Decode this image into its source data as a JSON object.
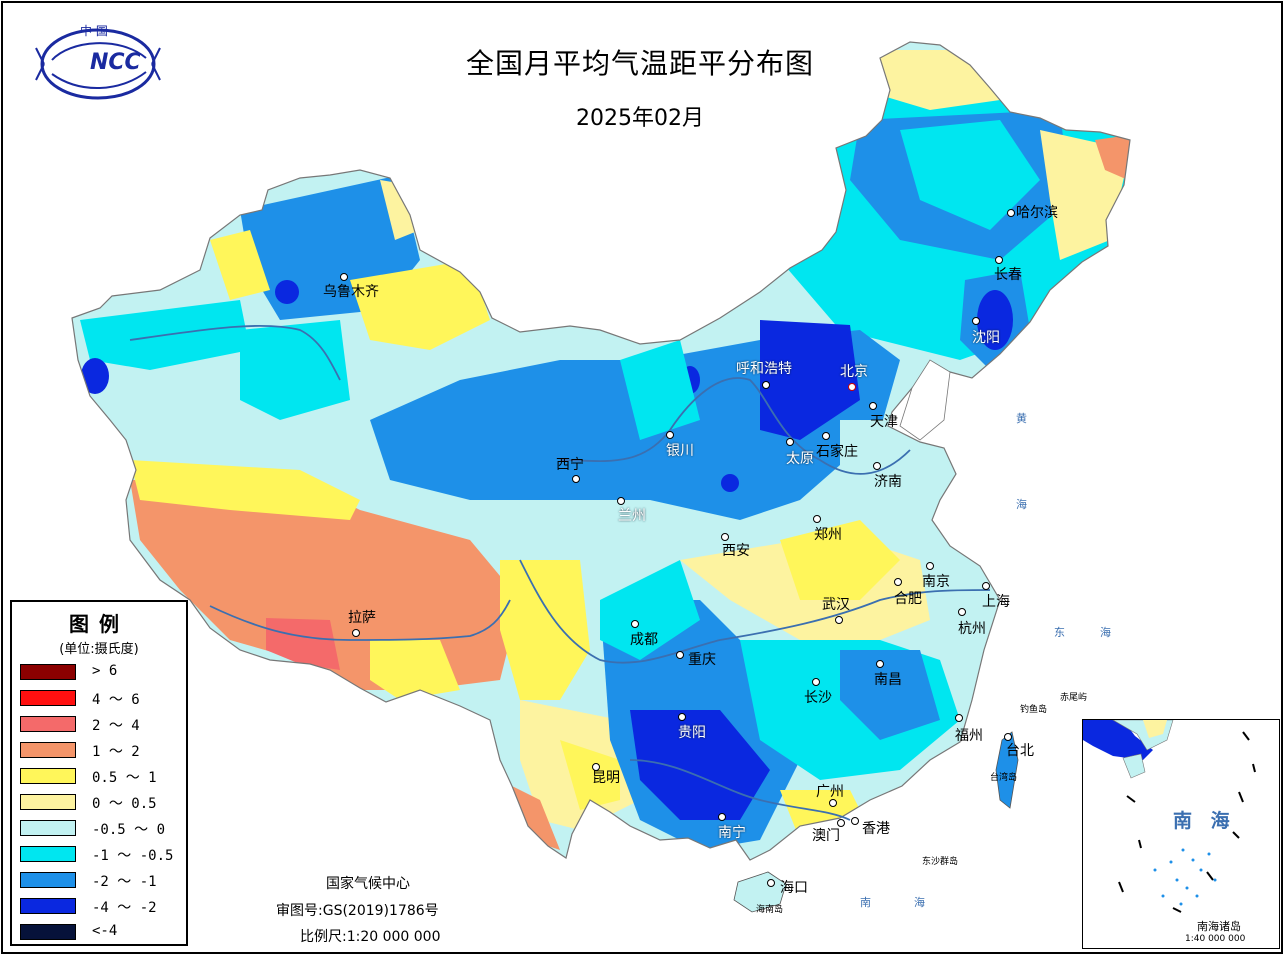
{
  "header": {
    "logo_top": "中 国",
    "logo_mark": "NCC",
    "title": "全国月平均气温距平分布图",
    "subtitle": "2025年02月"
  },
  "colors": {
    "gt6": "#8b0000",
    "4to6": "#ff1010",
    "2to4": "#f46a6a",
    "1to2": "#f4956a",
    "0.5to1": "#fff65a",
    "0to0.5": "#fdf3a0",
    "m0.5to0": "#c2f2f2",
    "m1tom0.5": "#00e6f0",
    "m2tom1": "#1e90e8",
    "m4tom2": "#0a28e0",
    "ltm4": "#06123a",
    "river": "#3b6fb0"
  },
  "cities": [
    {
      "name": "乌鲁木齐",
      "white": false
    },
    {
      "name": "拉萨",
      "white": false
    },
    {
      "name": "西宁",
      "white": false
    },
    {
      "name": "兰州",
      "white": true
    },
    {
      "name": "银川",
      "white": true
    },
    {
      "name": "呼和浩特",
      "white": true
    },
    {
      "name": "北京",
      "white": true
    },
    {
      "name": "天津",
      "white": false
    },
    {
      "name": "石家庄",
      "white": false
    },
    {
      "name": "太原",
      "white": true
    },
    {
      "name": "济南",
      "white": false
    },
    {
      "name": "郑州",
      "white": false
    },
    {
      "name": "西安",
      "white": false
    },
    {
      "name": "成都",
      "white": false
    },
    {
      "name": "重庆",
      "white": false
    },
    {
      "name": "贵阳",
      "white": true
    },
    {
      "name": "昆明",
      "white": false
    },
    {
      "name": "南宁",
      "white": true
    },
    {
      "name": "长沙",
      "white": false
    },
    {
      "name": "武汉",
      "white": false
    },
    {
      "name": "南昌",
      "white": false
    },
    {
      "name": "合肥",
      "white": false
    },
    {
      "name": "南京",
      "white": false
    },
    {
      "name": "上海",
      "white": false
    },
    {
      "name": "杭州",
      "white": false
    },
    {
      "name": "福州",
      "white": false
    },
    {
      "name": "台北",
      "white": false
    },
    {
      "name": "广州",
      "white": false
    },
    {
      "name": "澳门",
      "white": false
    },
    {
      "name": "香港",
      "white": false
    },
    {
      "name": "海口",
      "white": false
    },
    {
      "name": "哈尔滨",
      "white": false
    },
    {
      "name": "长春",
      "white": false
    },
    {
      "name": "沈阳",
      "white": true
    }
  ],
  "seas": {
    "huang": [
      "黄",
      "海"
    ],
    "dong": [
      "东",
      "海"
    ],
    "nan": [
      "南",
      "海"
    ]
  },
  "islands": {
    "diaoyu": "钓鱼岛",
    "chiwei": "赤尾屿",
    "taiwan": "台湾岛",
    "dongsha": "东沙群岛",
    "hainan": "海南岛"
  },
  "legend": {
    "title": "图例",
    "unit": "(单位:摄氏度)",
    "items": [
      {
        "label": "> 6",
        "color": "#8b0000"
      },
      {
        "label": "4 ～ 6",
        "color": "#ff1010"
      },
      {
        "label": "2 ～ 4",
        "color": "#f46a6a"
      },
      {
        "label": "1 ～ 2",
        "color": "#f4956a"
      },
      {
        "label": "0.5 ～ 1",
        "color": "#fff65a"
      },
      {
        "label": "0 ～ 0.5",
        "color": "#fdf3a0"
      },
      {
        "label": "-0.5 ～ 0",
        "color": "#c2f2f2"
      },
      {
        "label": "-1 ～ -0.5",
        "color": "#00e6f0"
      },
      {
        "label": "-2 ～ -1",
        "color": "#1e90e8"
      },
      {
        "label": "-4 ～ -2",
        "color": "#0a28e0"
      },
      {
        "label": "<-4",
        "color": "#06123a"
      }
    ]
  },
  "credits": {
    "org": "国家气候中心",
    "approval": "审图号:GS(2019)1786号",
    "scale": "比例尺:1:20 000 000"
  },
  "inset": {
    "sea": "南 海",
    "caption": "南海诸岛",
    "scale": "1:40 000 000"
  }
}
